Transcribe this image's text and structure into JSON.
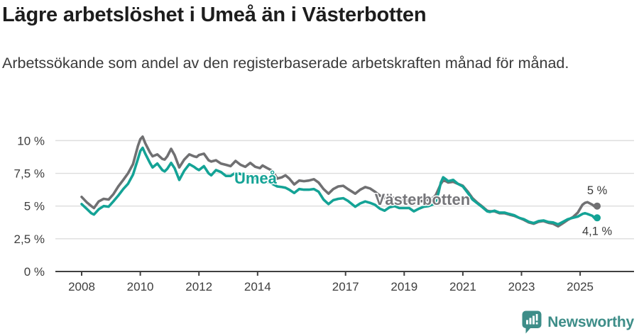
{
  "header": {
    "title": "Lägre arbetslöshet i Umeå än i Västerbotten",
    "subtitle": "Arbetssökande som andel av den registerbaserade arbetskraften månad för månad."
  },
  "footer": {
    "brand": "Newsworthy",
    "brand_color": "#3d8d88",
    "logo_icon": "newsworthy-speech-bubble-bar-chart-icon"
  },
  "colors": {
    "umea_teal": "#14a396",
    "vasterbotten_gray": "#707072",
    "gridline": "#dddddd",
    "axis": "#404040",
    "axis_text": "#3e3e3e",
    "annotation_text": "#3a3a3a",
    "title_text": "#1d1d1d"
  },
  "chart_data": {
    "type": "line",
    "title": "Lägre arbetslöshet i Umeå än i Västerbotten",
    "xlabel": "",
    "ylabel": "Arbetssökande som andel av den registerbaserade arbetskraften (%)",
    "grid": true,
    "legend_position": "inline-labels",
    "xlim": [
      2008,
      2025.58
    ],
    "ylim": [
      0,
      10.5
    ],
    "y_ticks": [
      {
        "value": 0,
        "label": "0 %"
      },
      {
        "value": 2.5,
        "label": "2,5 %"
      },
      {
        "value": 5,
        "label": "5 %"
      },
      {
        "value": 7.5,
        "label": "7,5 %"
      },
      {
        "value": 10,
        "label": "10 %"
      }
    ],
    "x_ticks": [
      {
        "value": 2008,
        "label": "2008"
      },
      {
        "value": 2010,
        "label": "2010"
      },
      {
        "value": 2012,
        "label": "2012"
      },
      {
        "value": 2014,
        "label": "2014"
      },
      {
        "value": 2017,
        "label": "2017"
      },
      {
        "value": 2019,
        "label": "2019"
      },
      {
        "value": 2021,
        "label": "2021"
      },
      {
        "value": 2023,
        "label": "2023"
      },
      {
        "value": 2025,
        "label": "2025"
      }
    ],
    "x": [
      2008.0,
      2008.17,
      2008.33,
      2008.42,
      2008.58,
      2008.75,
      2008.92,
      2009.08,
      2009.25,
      2009.42,
      2009.58,
      2009.75,
      2009.92,
      2010.0,
      2010.08,
      2010.17,
      2010.33,
      2010.42,
      2010.58,
      2010.75,
      2010.83,
      2010.92,
      2011.05,
      2011.17,
      2011.33,
      2011.5,
      2011.67,
      2011.83,
      2011.92,
      2012.0,
      2012.17,
      2012.33,
      2012.42,
      2012.58,
      2012.75,
      2012.92,
      2013.08,
      2013.25,
      2013.42,
      2013.58,
      2013.75,
      2013.92,
      2014.08,
      2014.17,
      2014.33,
      2014.5,
      2014.67,
      2014.83,
      2014.95,
      2015.08,
      2015.25,
      2015.42,
      2015.58,
      2015.75,
      2015.92,
      2016.08,
      2016.25,
      2016.42,
      2016.58,
      2016.75,
      2016.92,
      2017.08,
      2017.33,
      2017.5,
      2017.67,
      2017.83,
      2018.0,
      2018.17,
      2018.33,
      2018.5,
      2018.67,
      2018.83,
      2019.0,
      2019.17,
      2019.33,
      2019.5,
      2019.67,
      2019.83,
      2020.0,
      2020.08,
      2020.17,
      2020.25,
      2020.33,
      2020.42,
      2020.5,
      2020.67,
      2020.83,
      2021.0,
      2021.17,
      2021.33,
      2021.5,
      2021.67,
      2021.83,
      2021.92,
      2022.08,
      2022.25,
      2022.42,
      2022.58,
      2022.75,
      2022.92,
      2023.08,
      2023.25,
      2023.42,
      2023.58,
      2023.75,
      2023.92,
      2024.08,
      2024.25,
      2024.42,
      2024.58,
      2024.75,
      2024.92,
      2025.08,
      2025.17,
      2025.25,
      2025.42,
      2025.5,
      2025.58
    ],
    "series": [
      {
        "name": "Västerbotten",
        "color": "#707072",
        "values": [
          5.7,
          5.3,
          5.0,
          4.85,
          5.35,
          5.55,
          5.5,
          5.9,
          6.5,
          7.0,
          7.5,
          8.2,
          9.6,
          10.1,
          10.3,
          9.8,
          9.1,
          8.8,
          8.95,
          8.6,
          8.55,
          8.8,
          9.37,
          8.9,
          7.95,
          8.55,
          8.95,
          8.8,
          8.75,
          8.9,
          9.0,
          8.5,
          8.4,
          8.5,
          8.25,
          8.15,
          8.05,
          8.45,
          8.15,
          8.0,
          8.3,
          8.0,
          7.9,
          8.1,
          7.9,
          7.7,
          7.1,
          7.2,
          7.35,
          7.1,
          6.65,
          6.95,
          6.9,
          6.95,
          7.05,
          6.8,
          6.3,
          5.95,
          6.3,
          6.5,
          6.55,
          6.3,
          5.95,
          6.25,
          6.45,
          6.35,
          6.1,
          5.8,
          5.6,
          5.7,
          5.6,
          5.5,
          5.45,
          5.4,
          5.25,
          5.35,
          5.4,
          5.5,
          5.65,
          5.85,
          6.3,
          6.7,
          6.95,
          6.9,
          6.8,
          6.85,
          6.7,
          6.55,
          6.1,
          5.6,
          5.25,
          4.95,
          4.65,
          4.6,
          4.6,
          4.45,
          4.45,
          4.35,
          4.25,
          4.1,
          3.95,
          3.75,
          3.65,
          3.8,
          3.85,
          3.72,
          3.65,
          3.45,
          3.7,
          3.95,
          4.15,
          4.5,
          5.1,
          5.25,
          5.3,
          5.1,
          4.95,
          5.0
        ]
      },
      {
        "name": "Umeå",
        "color": "#14a396",
        "values": [
          5.15,
          4.8,
          4.45,
          4.35,
          4.75,
          5.0,
          4.95,
          5.35,
          5.8,
          6.3,
          6.7,
          7.4,
          8.6,
          9.2,
          9.45,
          9.0,
          8.3,
          7.95,
          8.25,
          7.75,
          7.65,
          7.85,
          8.3,
          7.9,
          7.0,
          7.7,
          8.2,
          8.0,
          7.85,
          7.75,
          8.05,
          7.5,
          7.35,
          7.75,
          7.6,
          7.3,
          7.3,
          7.55,
          7.45,
          7.35,
          7.25,
          7.1,
          7.0,
          6.95,
          6.85,
          6.7,
          6.5,
          6.45,
          6.4,
          6.25,
          6.0,
          6.3,
          6.25,
          6.25,
          6.3,
          6.1,
          5.5,
          5.15,
          5.45,
          5.55,
          5.6,
          5.4,
          4.95,
          5.2,
          5.35,
          5.25,
          5.1,
          4.8,
          4.65,
          4.9,
          5.0,
          4.85,
          4.85,
          4.85,
          4.6,
          4.8,
          4.95,
          5.0,
          5.15,
          5.4,
          6.0,
          6.8,
          7.2,
          7.05,
          6.9,
          7.0,
          6.7,
          6.5,
          6.0,
          5.5,
          5.2,
          4.9,
          4.6,
          4.55,
          4.65,
          4.5,
          4.5,
          4.4,
          4.3,
          4.1,
          4.0,
          3.8,
          3.7,
          3.85,
          3.9,
          3.78,
          3.75,
          3.6,
          3.8,
          4.0,
          4.1,
          4.2,
          4.4,
          4.45,
          4.4,
          4.25,
          4.05,
          4.1
        ]
      }
    ],
    "series_labels": [
      {
        "text": "Umeå",
        "series": "Umeå",
        "t": 2013.93,
        "v": 7.15,
        "color": "#14a396"
      },
      {
        "text": "Västerbotten",
        "series": "Västerbotten",
        "t": 2019.62,
        "v": 5.52,
        "color": "#76767a"
      }
    ],
    "end_labels": [
      {
        "text": "5 %",
        "series": "Västerbotten",
        "t": 2025.58,
        "v": 6.23
      },
      {
        "text": "4,1 %",
        "series": "Umeå",
        "t": 2025.58,
        "v": 3.12
      }
    ],
    "end_dots": [
      {
        "series": "Västerbotten",
        "t": 2025.58,
        "v": 5.0
      },
      {
        "series": "Umeå",
        "t": 2025.58,
        "v": 4.1
      }
    ]
  }
}
